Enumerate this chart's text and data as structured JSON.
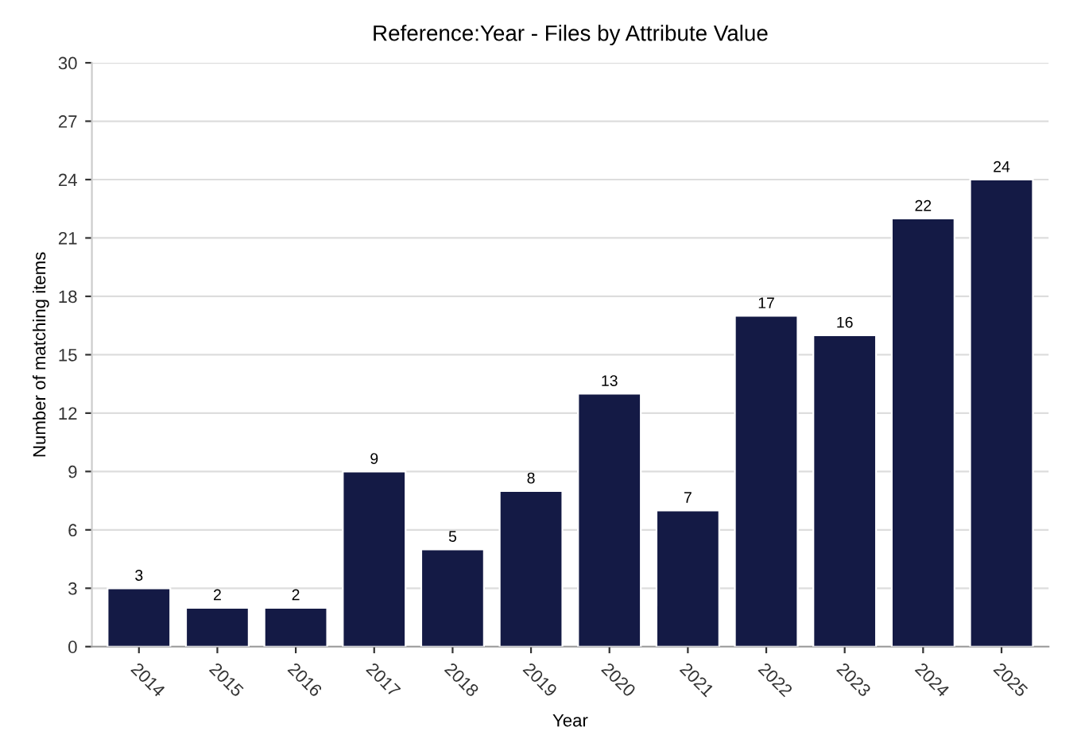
{
  "chart_data": {
    "type": "bar",
    "title": "Reference:Year - Files by Attribute Value",
    "xlabel": "Year",
    "ylabel": "Number of matching items",
    "categories": [
      "2014",
      "2015",
      "2016",
      "2017",
      "2018",
      "2019",
      "2020",
      "2021",
      "2022",
      "2023",
      "2024",
      "2025"
    ],
    "values": [
      3,
      2,
      2,
      9,
      5,
      8,
      13,
      7,
      17,
      16,
      22,
      24
    ],
    "color": "#141a45",
    "ylim": [
      0,
      30
    ],
    "yticks": [
      0,
      3,
      6,
      9,
      12,
      15,
      18,
      21,
      24,
      27,
      30
    ],
    "grid": "y",
    "data_labels": true
  }
}
